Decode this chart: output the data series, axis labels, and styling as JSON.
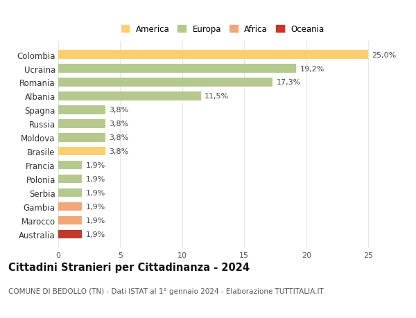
{
  "title": "Cittadini Stranieri per Cittadinanza - 2024",
  "subtitle": "COMUNE DI BEDOLLO (TN) - Dati ISTAT al 1° gennaio 2024 - Elaborazione TUTTITALIA.IT",
  "countries": [
    "Colombia",
    "Ucraina",
    "Romania",
    "Albania",
    "Spagna",
    "Russia",
    "Moldova",
    "Brasile",
    "Francia",
    "Polonia",
    "Serbia",
    "Gambia",
    "Marocco",
    "Australia"
  ],
  "values": [
    25.0,
    19.2,
    17.3,
    11.5,
    3.8,
    3.8,
    3.8,
    3.8,
    1.9,
    1.9,
    1.9,
    1.9,
    1.9,
    1.9
  ],
  "labels": [
    "25,0%",
    "19,2%",
    "17,3%",
    "11,5%",
    "3,8%",
    "3,8%",
    "3,8%",
    "3,8%",
    "1,9%",
    "1,9%",
    "1,9%",
    "1,9%",
    "1,9%",
    "1,9%"
  ],
  "colors": [
    "#FBCF6F",
    "#B5C98E",
    "#B5C98E",
    "#B5C98E",
    "#B5C98E",
    "#B5C98E",
    "#B5C98E",
    "#FBCF6F",
    "#B5C98E",
    "#B5C98E",
    "#B5C98E",
    "#F0A878",
    "#F0A878",
    "#C0392B"
  ],
  "legend": [
    {
      "label": "America",
      "color": "#FBCF6F"
    },
    {
      "label": "Europa",
      "color": "#B5C98E"
    },
    {
      "label": "Africa",
      "color": "#F0A878"
    },
    {
      "label": "Oceania",
      "color": "#C0392B"
    }
  ],
  "xlim": [
    0,
    26.5
  ],
  "xticks": [
    0,
    5,
    10,
    15,
    20,
    25
  ],
  "bg_color": "#FFFFFF",
  "plot_bg_color": "#FFFFFF",
  "grid_color": "#E5E5E5",
  "bar_height": 0.62,
  "label_fontsize": 8,
  "ytick_fontsize": 8.5,
  "xtick_fontsize": 8,
  "title_fontsize": 10.5,
  "subtitle_fontsize": 7.5,
  "legend_fontsize": 8.5
}
